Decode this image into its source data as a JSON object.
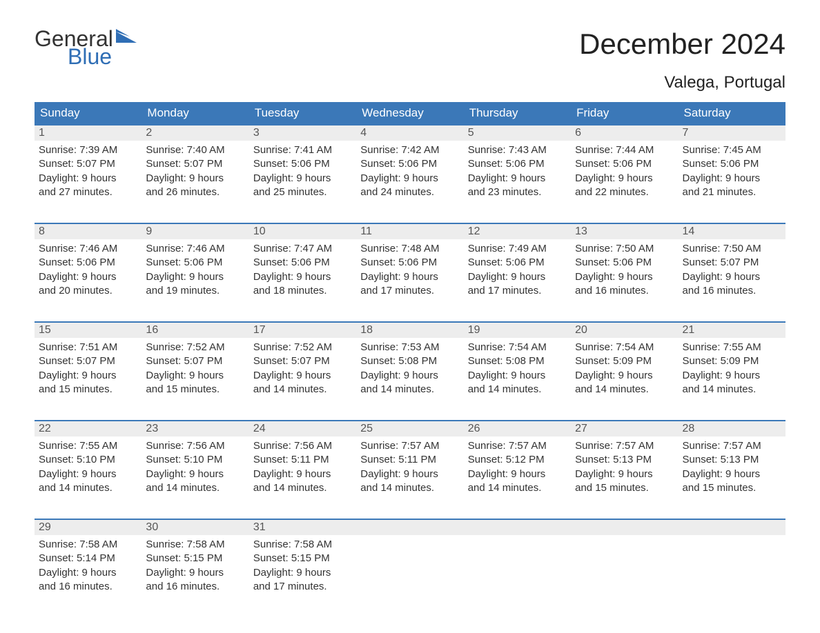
{
  "logo": {
    "text_general": "General",
    "text_blue": "Blue",
    "flag_color": "#2f6eb5"
  },
  "title": "December 2024",
  "subtitle": "Valega, Portugal",
  "colors": {
    "header_bg": "#3b78b8",
    "header_text": "#ffffff",
    "daynum_bg": "#ededed",
    "daynum_text": "#555555",
    "body_text": "#333333",
    "rule": "#3b78b8",
    "background": "#ffffff"
  },
  "typography": {
    "title_fontsize": 42,
    "subtitle_fontsize": 24,
    "weekday_fontsize": 17,
    "daynum_fontsize": 16,
    "body_fontsize": 15,
    "font_family": "Arial"
  },
  "weekdays": [
    "Sunday",
    "Monday",
    "Tuesday",
    "Wednesday",
    "Thursday",
    "Friday",
    "Saturday"
  ],
  "weeks": [
    [
      {
        "n": "1",
        "sr": "Sunrise: 7:39 AM",
        "ss": "Sunset: 5:07 PM",
        "d1": "Daylight: 9 hours",
        "d2": "and 27 minutes."
      },
      {
        "n": "2",
        "sr": "Sunrise: 7:40 AM",
        "ss": "Sunset: 5:07 PM",
        "d1": "Daylight: 9 hours",
        "d2": "and 26 minutes."
      },
      {
        "n": "3",
        "sr": "Sunrise: 7:41 AM",
        "ss": "Sunset: 5:06 PM",
        "d1": "Daylight: 9 hours",
        "d2": "and 25 minutes."
      },
      {
        "n": "4",
        "sr": "Sunrise: 7:42 AM",
        "ss": "Sunset: 5:06 PM",
        "d1": "Daylight: 9 hours",
        "d2": "and 24 minutes."
      },
      {
        "n": "5",
        "sr": "Sunrise: 7:43 AM",
        "ss": "Sunset: 5:06 PM",
        "d1": "Daylight: 9 hours",
        "d2": "and 23 minutes."
      },
      {
        "n": "6",
        "sr": "Sunrise: 7:44 AM",
        "ss": "Sunset: 5:06 PM",
        "d1": "Daylight: 9 hours",
        "d2": "and 22 minutes."
      },
      {
        "n": "7",
        "sr": "Sunrise: 7:45 AM",
        "ss": "Sunset: 5:06 PM",
        "d1": "Daylight: 9 hours",
        "d2": "and 21 minutes."
      }
    ],
    [
      {
        "n": "8",
        "sr": "Sunrise: 7:46 AM",
        "ss": "Sunset: 5:06 PM",
        "d1": "Daylight: 9 hours",
        "d2": "and 20 minutes."
      },
      {
        "n": "9",
        "sr": "Sunrise: 7:46 AM",
        "ss": "Sunset: 5:06 PM",
        "d1": "Daylight: 9 hours",
        "d2": "and 19 minutes."
      },
      {
        "n": "10",
        "sr": "Sunrise: 7:47 AM",
        "ss": "Sunset: 5:06 PM",
        "d1": "Daylight: 9 hours",
        "d2": "and 18 minutes."
      },
      {
        "n": "11",
        "sr": "Sunrise: 7:48 AM",
        "ss": "Sunset: 5:06 PM",
        "d1": "Daylight: 9 hours",
        "d2": "and 17 minutes."
      },
      {
        "n": "12",
        "sr": "Sunrise: 7:49 AM",
        "ss": "Sunset: 5:06 PM",
        "d1": "Daylight: 9 hours",
        "d2": "and 17 minutes."
      },
      {
        "n": "13",
        "sr": "Sunrise: 7:50 AM",
        "ss": "Sunset: 5:06 PM",
        "d1": "Daylight: 9 hours",
        "d2": "and 16 minutes."
      },
      {
        "n": "14",
        "sr": "Sunrise: 7:50 AM",
        "ss": "Sunset: 5:07 PM",
        "d1": "Daylight: 9 hours",
        "d2": "and 16 minutes."
      }
    ],
    [
      {
        "n": "15",
        "sr": "Sunrise: 7:51 AM",
        "ss": "Sunset: 5:07 PM",
        "d1": "Daylight: 9 hours",
        "d2": "and 15 minutes."
      },
      {
        "n": "16",
        "sr": "Sunrise: 7:52 AM",
        "ss": "Sunset: 5:07 PM",
        "d1": "Daylight: 9 hours",
        "d2": "and 15 minutes."
      },
      {
        "n": "17",
        "sr": "Sunrise: 7:52 AM",
        "ss": "Sunset: 5:07 PM",
        "d1": "Daylight: 9 hours",
        "d2": "and 14 minutes."
      },
      {
        "n": "18",
        "sr": "Sunrise: 7:53 AM",
        "ss": "Sunset: 5:08 PM",
        "d1": "Daylight: 9 hours",
        "d2": "and 14 minutes."
      },
      {
        "n": "19",
        "sr": "Sunrise: 7:54 AM",
        "ss": "Sunset: 5:08 PM",
        "d1": "Daylight: 9 hours",
        "d2": "and 14 minutes."
      },
      {
        "n": "20",
        "sr": "Sunrise: 7:54 AM",
        "ss": "Sunset: 5:09 PM",
        "d1": "Daylight: 9 hours",
        "d2": "and 14 minutes."
      },
      {
        "n": "21",
        "sr": "Sunrise: 7:55 AM",
        "ss": "Sunset: 5:09 PM",
        "d1": "Daylight: 9 hours",
        "d2": "and 14 minutes."
      }
    ],
    [
      {
        "n": "22",
        "sr": "Sunrise: 7:55 AM",
        "ss": "Sunset: 5:10 PM",
        "d1": "Daylight: 9 hours",
        "d2": "and 14 minutes."
      },
      {
        "n": "23",
        "sr": "Sunrise: 7:56 AM",
        "ss": "Sunset: 5:10 PM",
        "d1": "Daylight: 9 hours",
        "d2": "and 14 minutes."
      },
      {
        "n": "24",
        "sr": "Sunrise: 7:56 AM",
        "ss": "Sunset: 5:11 PM",
        "d1": "Daylight: 9 hours",
        "d2": "and 14 minutes."
      },
      {
        "n": "25",
        "sr": "Sunrise: 7:57 AM",
        "ss": "Sunset: 5:11 PM",
        "d1": "Daylight: 9 hours",
        "d2": "and 14 minutes."
      },
      {
        "n": "26",
        "sr": "Sunrise: 7:57 AM",
        "ss": "Sunset: 5:12 PM",
        "d1": "Daylight: 9 hours",
        "d2": "and 14 minutes."
      },
      {
        "n": "27",
        "sr": "Sunrise: 7:57 AM",
        "ss": "Sunset: 5:13 PM",
        "d1": "Daylight: 9 hours",
        "d2": "and 15 minutes."
      },
      {
        "n": "28",
        "sr": "Sunrise: 7:57 AM",
        "ss": "Sunset: 5:13 PM",
        "d1": "Daylight: 9 hours",
        "d2": "and 15 minutes."
      }
    ],
    [
      {
        "n": "29",
        "sr": "Sunrise: 7:58 AM",
        "ss": "Sunset: 5:14 PM",
        "d1": "Daylight: 9 hours",
        "d2": "and 16 minutes."
      },
      {
        "n": "30",
        "sr": "Sunrise: 7:58 AM",
        "ss": "Sunset: 5:15 PM",
        "d1": "Daylight: 9 hours",
        "d2": "and 16 minutes."
      },
      {
        "n": "31",
        "sr": "Sunrise: 7:58 AM",
        "ss": "Sunset: 5:15 PM",
        "d1": "Daylight: 9 hours",
        "d2": "and 17 minutes."
      },
      null,
      null,
      null,
      null
    ]
  ]
}
